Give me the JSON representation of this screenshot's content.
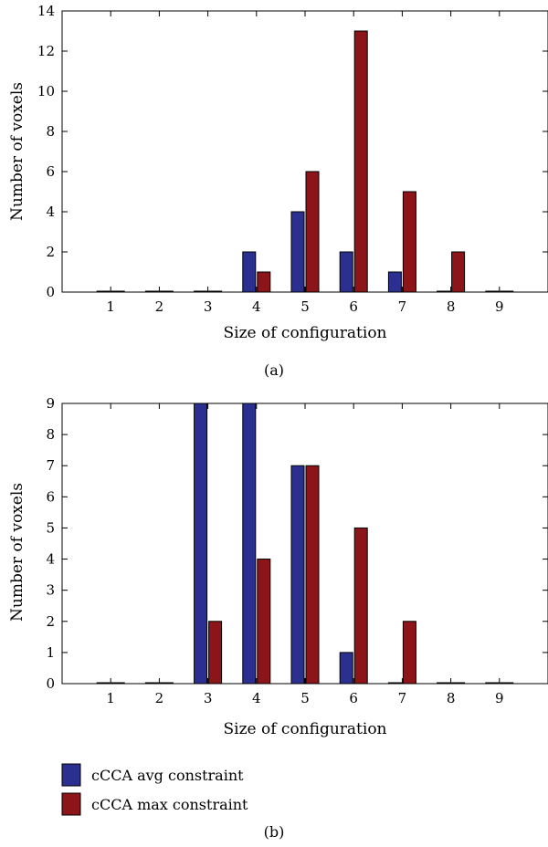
{
  "colors": {
    "avg": "#2b2f8f",
    "max": "#8b1519"
  },
  "chart_data": [
    {
      "type": "bar",
      "caption": "(a)",
      "xlabel": "Size of configuration",
      "ylabel": "Number of voxels",
      "categories": [
        "1",
        "2",
        "3",
        "4",
        "5",
        "6",
        "7",
        "8",
        "9"
      ],
      "xlim": [
        0,
        10
      ],
      "ylim": [
        0,
        14
      ],
      "yticks": [
        0,
        2,
        4,
        6,
        8,
        10,
        12,
        14
      ],
      "series": [
        {
          "name": "cCCA avg constraint",
          "values": [
            0,
            0,
            0,
            2,
            4,
            2,
            1,
            0,
            0
          ]
        },
        {
          "name": "cCCA max constraint",
          "values": [
            0,
            0,
            0,
            1,
            6,
            13,
            5,
            2,
            0
          ]
        }
      ]
    },
    {
      "type": "bar",
      "caption": "(b)",
      "xlabel": "Size of configuration",
      "ylabel": "Number of voxels",
      "categories": [
        "1",
        "2",
        "3",
        "4",
        "5",
        "6",
        "7",
        "8",
        "9"
      ],
      "xlim": [
        0,
        10
      ],
      "ylim": [
        0,
        9
      ],
      "yticks": [
        0,
        1,
        2,
        3,
        4,
        5,
        6,
        7,
        8,
        9
      ],
      "series": [
        {
          "name": "cCCA avg constraint",
          "values": [
            0,
            0,
            9,
            9,
            7,
            1,
            0,
            0,
            0
          ]
        },
        {
          "name": "cCCA max constraint",
          "values": [
            0,
            0,
            2,
            4,
            7,
            5,
            2,
            0,
            0
          ]
        }
      ]
    }
  ],
  "legend": {
    "items": [
      {
        "label": "cCCA avg constraint",
        "color_key": "avg"
      },
      {
        "label": "cCCA max constraint",
        "color_key": "max"
      }
    ]
  }
}
